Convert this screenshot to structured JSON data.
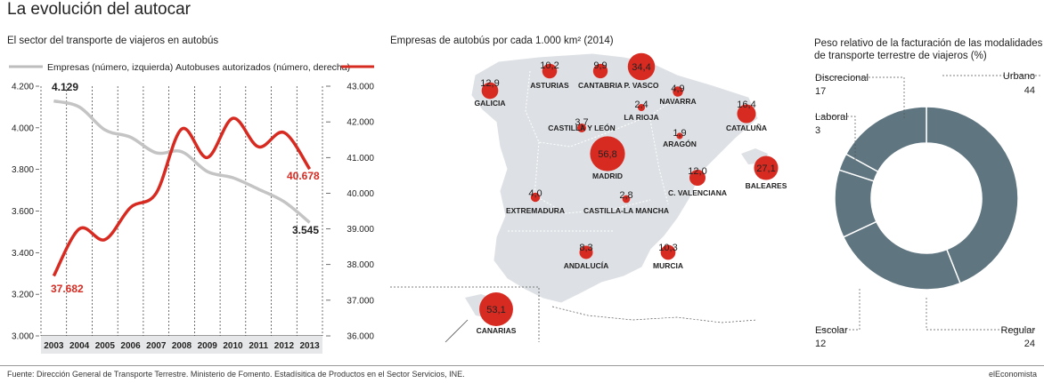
{
  "title": "La evolución del autocar",
  "footer": {
    "source": "Fuente: Dirección General de Transporte Terrestre. Ministerio de Fomento. Estadísitica de Productos en el Sector Servicios, INE.",
    "brand": "elEconomista"
  },
  "colors": {
    "grey_series": "#bdbdbd",
    "red_series": "#d72b22",
    "map_land": "#dde0e4",
    "donut": "#5f7580"
  },
  "line_chart": {
    "subtitle": "El sector del transporte de viajeros en autobús",
    "legend_left": "Empresas (número, izquierda)",
    "legend_right": "Autobuses autorizados (número, derecha)",
    "left_ticks": [
      "4.200",
      "4.000",
      "3.800",
      "3.600",
      "3.400",
      "3.200",
      "3.000"
    ],
    "right_ticks": [
      "43.000",
      "42.000",
      "41.000",
      "40.000",
      "39.000",
      "38.000",
      "37.000",
      "36.000"
    ],
    "years": [
      "2003",
      "2004",
      "2005",
      "2006",
      "2007",
      "2008",
      "2009",
      "2010",
      "2011",
      "2012",
      "2013"
    ],
    "labels": {
      "grey_start": "4.129",
      "grey_end": "3.545",
      "red_start": "37.682",
      "red_end": "40.678"
    }
  },
  "map": {
    "subtitle": "Empresas de autobús por cada 1.000 km² (2014)",
    "regions": [
      {
        "name": "GALICIA",
        "value": "12,9"
      },
      {
        "name": "ASTURIAS",
        "value": "10,2"
      },
      {
        "name": "CANTABRIA",
        "value": "9,9"
      },
      {
        "name": "P. VASCO",
        "value": "34,4"
      },
      {
        "name": "NAVARRA",
        "value": "4,9"
      },
      {
        "name": "LA RIOJA",
        "value": "2,4"
      },
      {
        "name": "ARAGÓN",
        "value": "1,9"
      },
      {
        "name": "CATALUÑA",
        "value": "16,4"
      },
      {
        "name": "CASTILLA Y LEÓN",
        "value": "3,7"
      },
      {
        "name": "MADRID",
        "value": "56,8"
      },
      {
        "name": "BALEARES",
        "value": "27,1"
      },
      {
        "name": "C. VALENCIANA",
        "value": "12,0"
      },
      {
        "name": "EXTREMADURA",
        "value": "4,0"
      },
      {
        "name": "CASTILLA-LA MANCHA",
        "value": "2,8"
      },
      {
        "name": "ANDALUCÍA",
        "value": "8,3"
      },
      {
        "name": "MURCIA",
        "value": "10,3"
      },
      {
        "name": "CANARIAS",
        "value": "53,1"
      }
    ]
  },
  "donut": {
    "subtitle_line1": "Peso relativo de la facturación de las modalidades",
    "subtitle_line2": "de transporte terrestre de viajeros (%)",
    "segments": [
      {
        "name": "Urbano",
        "value": "44"
      },
      {
        "name": "Regular",
        "value": "24"
      },
      {
        "name": "Escolar",
        "value": "12"
      },
      {
        "name": "Laboral",
        "value": "3"
      },
      {
        "name": "Discrecional",
        "value": "17"
      }
    ]
  },
  "chart_data": [
    {
      "type": "line",
      "title": "El sector del transporte de viajeros en autobús",
      "x": [
        2003,
        2004,
        2005,
        2006,
        2007,
        2008,
        2009,
        2010,
        2011,
        2012,
        2013
      ],
      "series": [
        {
          "name": "Empresas (número, izquierda)",
          "axis": "left",
          "values": [
            4129,
            4100,
            3990,
            3955,
            3880,
            3885,
            3790,
            3760,
            3705,
            3645,
            3545
          ]
        },
        {
          "name": "Autobuses autorizados (número, derecha)",
          "axis": "right",
          "values": [
            37682,
            39000,
            38700,
            39600,
            40000,
            41800,
            41000,
            42100,
            41300,
            41700,
            40678
          ]
        }
      ],
      "ylim_left": [
        3000,
        4200
      ],
      "ylim_right": [
        36000,
        43000
      ]
    },
    {
      "type": "bubble-map",
      "title": "Empresas de autobús por cada 1.000 km² (2014)",
      "categories": [
        "Galicia",
        "Asturias",
        "Cantabria",
        "P. Vasco",
        "Navarra",
        "La Rioja",
        "Aragón",
        "Cataluña",
        "Castilla y León",
        "Madrid",
        "Baleares",
        "C. Valenciana",
        "Extremadura",
        "Castilla-La Mancha",
        "Andalucía",
        "Murcia",
        "Canarias"
      ],
      "values": [
        12.9,
        10.2,
        9.9,
        34.4,
        4.9,
        2.4,
        1.9,
        16.4,
        3.7,
        56.8,
        27.1,
        12.0,
        4.0,
        2.8,
        8.3,
        10.3,
        53.1
      ]
    },
    {
      "type": "pie",
      "title": "Peso relativo de la facturación de las modalidades de transporte terrestre de viajeros (%)",
      "categories": [
        "Urbano",
        "Regular",
        "Escolar",
        "Laboral",
        "Discrecional"
      ],
      "values": [
        44,
        24,
        12,
        3,
        17
      ]
    }
  ]
}
